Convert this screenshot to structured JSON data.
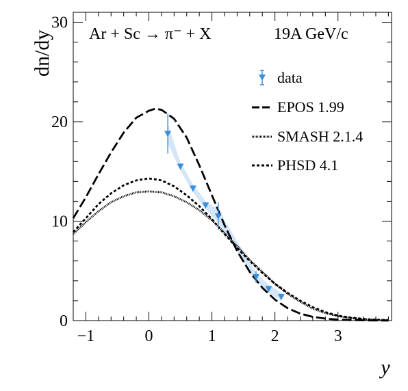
{
  "chart_data": {
    "type": "line",
    "header": {
      "reaction": "Ar + Sc → π⁻ + X",
      "energy": "19A GeV/c"
    },
    "xlabel": "y",
    "ylabel": "dn/dy",
    "xlim": [
      -1.2,
      3.85
    ],
    "ylim": [
      0,
      31
    ],
    "x_ticks": [
      -1,
      0,
      1,
      2,
      3
    ],
    "y_ticks": [
      0,
      10,
      20,
      30
    ],
    "legend": [
      "data",
      "EPOS 1.99",
      "SMASH 2.1.4",
      "PHSD 4.1"
    ],
    "data": {
      "name": "data",
      "color": "#3a8fdb",
      "band_color": "#cfe3f7",
      "x": [
        0.3,
        0.5,
        0.7,
        0.9,
        1.1,
        1.7,
        1.9,
        2.1
      ],
      "y": [
        18.8,
        15.5,
        13.3,
        11.6,
        10.5,
        4.4,
        3.2,
        2.4
      ],
      "err": [
        2.0,
        0.3,
        0.3,
        0.3,
        1.4,
        0.6,
        0.3,
        0.3
      ]
    },
    "series": [
      {
        "name": "EPOS 1.99",
        "style": "dashed-long",
        "x": [
          -1.2,
          -1.0,
          -0.8,
          -0.6,
          -0.4,
          -0.2,
          0.0,
          0.1,
          0.2,
          0.4,
          0.6,
          0.8,
          1.0,
          1.2,
          1.4,
          1.6,
          1.8,
          2.0,
          2.2,
          2.4,
          2.6,
          2.8,
          3.0,
          3.2,
          3.5,
          3.8
        ],
        "y": [
          10.3,
          12.4,
          14.7,
          16.9,
          18.9,
          20.4,
          21.1,
          21.3,
          21.2,
          20.3,
          18.4,
          15.6,
          12.6,
          9.6,
          7.0,
          4.9,
          3.3,
          2.1,
          1.25,
          0.7,
          0.38,
          0.2,
          0.1,
          0.05,
          0.02,
          0.0
        ]
      },
      {
        "name": "SMASH 2.1.4",
        "style": "dotted",
        "x": [
          -1.2,
          -1.0,
          -0.8,
          -0.6,
          -0.4,
          -0.2,
          0.0,
          0.2,
          0.4,
          0.6,
          0.8,
          1.0,
          1.2,
          1.4,
          1.6,
          1.8,
          2.0,
          2.2,
          2.4,
          2.6,
          2.8,
          3.0,
          3.2,
          3.5,
          3.8
        ],
        "y": [
          8.7,
          9.9,
          11.0,
          11.9,
          12.5,
          12.9,
          13.0,
          12.9,
          12.5,
          11.9,
          11.1,
          10.1,
          8.8,
          7.5,
          6.1,
          4.9,
          3.7,
          2.7,
          1.9,
          1.2,
          0.75,
          0.45,
          0.25,
          0.1,
          0.04
        ]
      },
      {
        "name": "PHSD 4.1",
        "style": "dashed-short",
        "x": [
          -1.2,
          -1.0,
          -0.8,
          -0.6,
          -0.4,
          -0.2,
          0.0,
          0.2,
          0.4,
          0.6,
          0.8,
          1.0,
          1.2,
          1.4,
          1.6,
          1.8,
          2.0,
          2.2,
          2.4,
          2.6,
          2.8,
          3.0,
          3.2,
          3.5,
          3.8
        ],
        "y": [
          8.9,
          10.3,
          11.7,
          12.8,
          13.6,
          14.1,
          14.3,
          14.1,
          13.5,
          12.6,
          11.5,
          10.2,
          8.7,
          7.3,
          6.0,
          4.8,
          3.7,
          2.8,
          2.0,
          1.35,
          0.85,
          0.5,
          0.3,
          0.12,
          0.05
        ]
      }
    ]
  }
}
